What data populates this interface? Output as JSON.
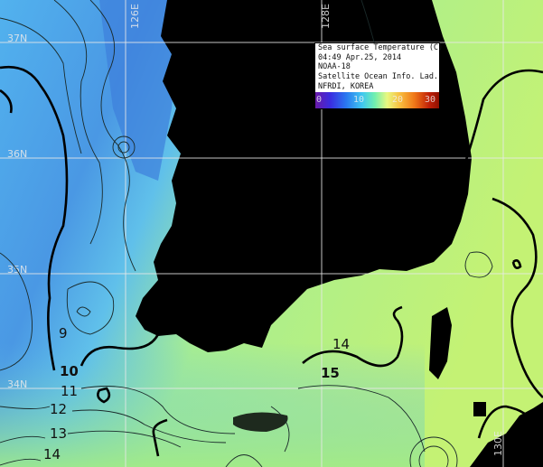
{
  "legend": {
    "title": "Sea surface Temperature (C)",
    "datetime": "04:49 Apr.25, 2014",
    "satellite": "NOAA-18",
    "lab": "Satellite Ocean Info. Lad.",
    "org": "NFRDI, KOREA",
    "scale_ticks": [
      "0",
      "10",
      "20",
      "30"
    ],
    "colors": [
      "#6a1aa8",
      "#2a78f0",
      "#40c8f0",
      "#e8f880",
      "#f07818",
      "#901000"
    ]
  },
  "grid_labels": {
    "lat": [
      "37N",
      "36N",
      "35N",
      "34N"
    ],
    "lon": [
      "126E",
      "128E",
      "130E"
    ]
  },
  "contour_labels": [
    "9",
    "10",
    "11",
    "12",
    "13",
    "14",
    "14",
    "15"
  ],
  "colors": {
    "land": "#000000",
    "cold_water": "#3a80d8",
    "warm_water": "#b8f070"
  }
}
